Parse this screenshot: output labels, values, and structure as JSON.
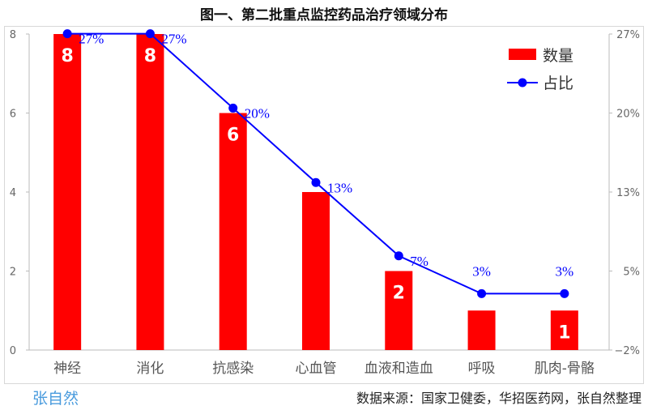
{
  "chart_data": {
    "type": "bar+line",
    "title": "图一、第二批重点监控药品治疗领域分布",
    "categories": [
      "神经",
      "消化",
      "抗感染",
      "心血管",
      "血液和造血",
      "呼吸",
      "肌肉-骨骼"
    ],
    "series": [
      {
        "name": "数量",
        "type": "bar",
        "axis": "left",
        "color": "#ff0000",
        "values": [
          8,
          8,
          6,
          4,
          2,
          1,
          1
        ],
        "data_labels": [
          "8",
          "8",
          "6",
          "",
          "2",
          "",
          "1"
        ]
      },
      {
        "name": "占比",
        "type": "line",
        "axis": "right",
        "color": "#0000ff",
        "values": [
          26.7,
          26.7,
          20,
          13.3,
          6.7,
          3.3,
          3.3
        ],
        "data_labels": [
          "27%",
          "27%",
          "20%",
          "13%",
          "7%",
          "3%",
          "3%"
        ]
      }
    ],
    "left_axis": {
      "ylim": [
        0,
        8
      ],
      "ticks": [
        "0",
        "2",
        "4",
        "6",
        "8"
      ]
    },
    "right_axis": {
      "ylim": [
        -1.78,
        26.67
      ],
      "ticks": [
        "−2%",
        "5%",
        "13%",
        "20%",
        "27%"
      ]
    },
    "legend": "top-right",
    "source": "数据来源：国家卫健委，华招医药网，张自然整理",
    "watermark": "张自然"
  }
}
